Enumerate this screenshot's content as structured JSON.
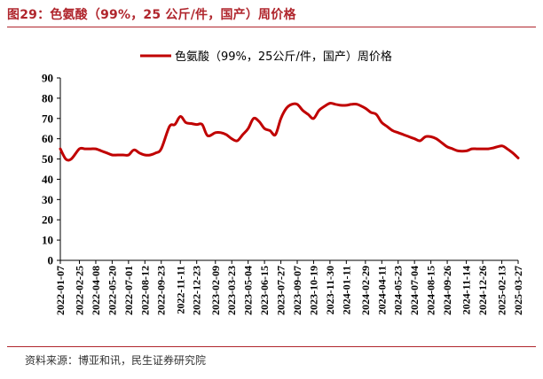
{
  "figure": {
    "title": "图29：色氨酸（99%，25 公斤/件，国产）周价格",
    "source": "资料来源：博亚和讯，民生证券研究院"
  },
  "chart_data": {
    "type": "line",
    "title": "",
    "xlabel": "",
    "ylabel": "",
    "ylim": [
      0,
      90
    ],
    "yticks": [
      0,
      10,
      20,
      30,
      40,
      50,
      60,
      70,
      80,
      90
    ],
    "grid": false,
    "legend_position": "top-center",
    "color": "#c00000",
    "x_tick_labels": [
      "2022-01-07",
      "2022-02-25",
      "2022-04-08",
      "2022-05-20",
      "2022-07-01",
      "2022-08-12",
      "2022-09-23",
      "2022-11-11",
      "2022-12-23",
      "2023-02-09",
      "2023-03-23",
      "2023-05-04",
      "2023-06-15",
      "2023-07-27",
      "2023-09-07",
      "2023-10-19",
      "2023-11-30",
      "2024-01-11",
      "2024-02-29",
      "2024-04-11",
      "2024-05-23",
      "2024-07-04",
      "2024-08-15",
      "2024-09-26",
      "2024-11-14",
      "2024-12-26",
      "2025-02-13",
      "2025-03-27"
    ],
    "series": [
      {
        "name": "色氨酸（99%，25公斤/件，国产）周价格",
        "x": [
          "2022-01-07",
          "2022-01-21",
          "2022-02-04",
          "2022-02-25",
          "2022-03-11",
          "2022-03-25",
          "2022-04-08",
          "2022-04-22",
          "2022-05-06",
          "2022-05-20",
          "2022-06-03",
          "2022-06-17",
          "2022-07-01",
          "2022-07-15",
          "2022-07-29",
          "2022-08-12",
          "2022-08-26",
          "2022-09-09",
          "2022-09-23",
          "2022-10-14",
          "2022-10-28",
          "2022-11-11",
          "2022-11-25",
          "2022-12-09",
          "2022-12-23",
          "2023-01-06",
          "2023-01-20",
          "2023-02-09",
          "2023-02-23",
          "2023-03-09",
          "2023-03-23",
          "2023-04-06",
          "2023-04-20",
          "2023-05-04",
          "2023-05-18",
          "2023-06-01",
          "2023-06-15",
          "2023-06-29",
          "2023-07-13",
          "2023-07-27",
          "2023-08-10",
          "2023-08-24",
          "2023-09-07",
          "2023-09-21",
          "2023-10-05",
          "2023-10-19",
          "2023-11-02",
          "2023-11-16",
          "2023-11-30",
          "2023-12-14",
          "2023-12-28",
          "2024-01-11",
          "2024-01-25",
          "2024-02-08",
          "2024-02-29",
          "2024-03-14",
          "2024-03-28",
          "2024-04-11",
          "2024-04-25",
          "2024-05-09",
          "2024-05-23",
          "2024-06-06",
          "2024-06-20",
          "2024-07-04",
          "2024-07-18",
          "2024-08-01",
          "2024-08-15",
          "2024-08-29",
          "2024-09-12",
          "2024-09-26",
          "2024-10-10",
          "2024-10-24",
          "2024-11-14",
          "2024-11-28",
          "2024-12-12",
          "2024-12-26",
          "2025-01-09",
          "2025-01-23",
          "2025-02-13",
          "2025-02-27",
          "2025-03-13",
          "2025-03-27"
        ],
        "values": [
          55,
          50,
          50,
          55,
          55,
          55,
          55,
          54,
          53,
          52,
          52,
          52,
          52,
          54.5,
          53,
          52,
          52,
          53,
          55,
          66,
          67,
          71,
          68,
          67.5,
          67,
          67,
          61.5,
          63,
          63,
          62,
          60,
          59,
          62,
          65,
          70,
          68.5,
          65,
          64,
          62,
          70,
          75,
          77,
          77,
          74,
          72,
          70,
          74,
          76,
          77.5,
          77,
          76.5,
          76.5,
          77,
          77,
          75,
          73,
          72,
          68,
          66,
          64,
          63,
          62,
          61,
          60,
          59,
          61,
          61,
          60,
          58,
          56,
          55,
          54,
          54,
          55,
          55,
          55,
          55,
          55.5,
          56.5,
          55,
          53,
          50.5
        ]
      }
    ]
  }
}
